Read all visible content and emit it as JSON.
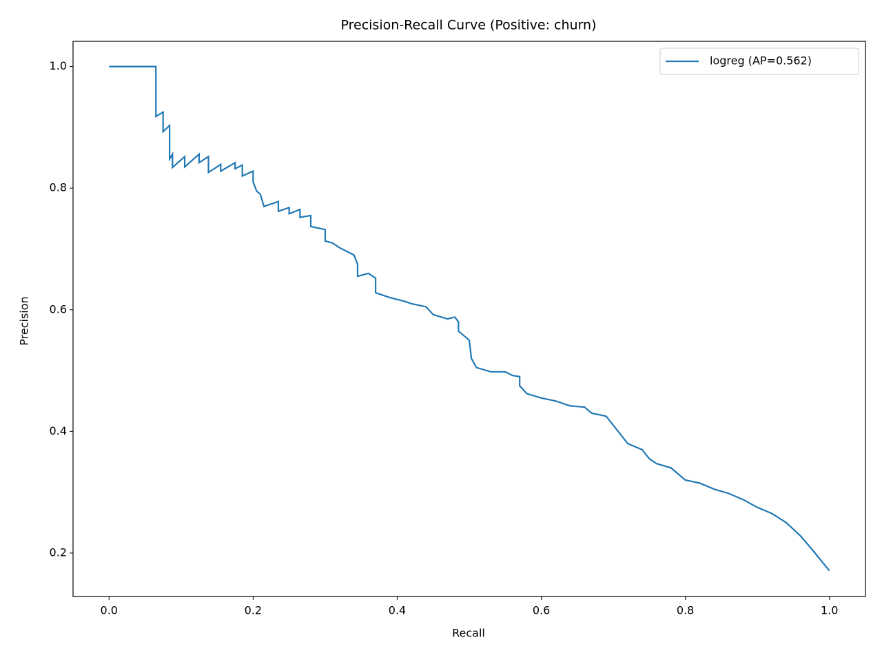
{
  "chart_data": {
    "type": "line",
    "title": "Precision-Recall Curve (Positive: churn)",
    "x_label": "Recall",
    "y_label": "Precision",
    "xlim": [
      -0.05,
      1.05
    ],
    "ylim": [
      0.1285,
      1.0415
    ],
    "xticks": [
      {
        "value": 0,
        "label": "0.0"
      },
      0.2,
      0.4,
      0.6,
      0.8,
      {
        "value": 1,
        "label": "1.0"
      }
    ],
    "yticks": [
      0.2,
      0.4,
      0.6,
      0.8,
      {
        "value": 1,
        "label": "1.0"
      }
    ],
    "legend": "upper right",
    "series": [
      {
        "name": "logreg (AP=0.562)",
        "color": "#1f77b4",
        "x": [
          0,
          0.065,
          0.065,
          0.075,
          0.075,
          0.084,
          0.084,
          0.088,
          0.088,
          0.105,
          0.105,
          0.125,
          0.125,
          0.138,
          0.138,
          0.155,
          0.155,
          0.175,
          0.175,
          0.185,
          0.185,
          0.2,
          0.2,
          0.205,
          0.21,
          0.215,
          0.235,
          0.235,
          0.25,
          0.25,
          0.265,
          0.265,
          0.28,
          0.28,
          0.3,
          0.3,
          0.31,
          0.32,
          0.34,
          0.345,
          0.345,
          0.36,
          0.37,
          0.37,
          0.39,
          0.41,
          0.42,
          0.44,
          0.45,
          0.47,
          0.48,
          0.485,
          0.485,
          0.5,
          0.503,
          0.51,
          0.53,
          0.55,
          0.56,
          0.57,
          0.57,
          0.58,
          0.6,
          0.62,
          0.64,
          0.66,
          0.67,
          0.69,
          0.7,
          0.71,
          0.72,
          0.74,
          0.75,
          0.76,
          0.78,
          0.8,
          0.82,
          0.84,
          0.86,
          0.88,
          0.9,
          0.92,
          0.94,
          0.96,
          0.98,
          0.995,
          1.0
        ],
        "values": [
          1,
          1,
          0.918,
          0.925,
          0.893,
          0.903,
          0.848,
          0.856,
          0.834,
          0.852,
          0.835,
          0.856,
          0.842,
          0.852,
          0.826,
          0.839,
          0.828,
          0.842,
          0.832,
          0.838,
          0.82,
          0.828,
          0.81,
          0.795,
          0.79,
          0.77,
          0.778,
          0.762,
          0.768,
          0.758,
          0.765,
          0.752,
          0.755,
          0.737,
          0.732,
          0.713,
          0.71,
          0.702,
          0.69,
          0.675,
          0.655,
          0.66,
          0.652,
          0.628,
          0.62,
          0.614,
          0.61,
          0.605,
          0.592,
          0.585,
          0.588,
          0.58,
          0.565,
          0.55,
          0.52,
          0.505,
          0.498,
          0.498,
          0.492,
          0.49,
          0.475,
          0.462,
          0.455,
          0.45,
          0.442,
          0.44,
          0.43,
          0.425,
          0.41,
          0.395,
          0.38,
          0.37,
          0.355,
          0.347,
          0.34,
          0.32,
          0.315,
          0.305,
          0.298,
          0.288,
          0.275,
          0.265,
          0.25,
          0.228,
          0.2,
          0.178,
          0.171
        ]
      }
    ]
  }
}
